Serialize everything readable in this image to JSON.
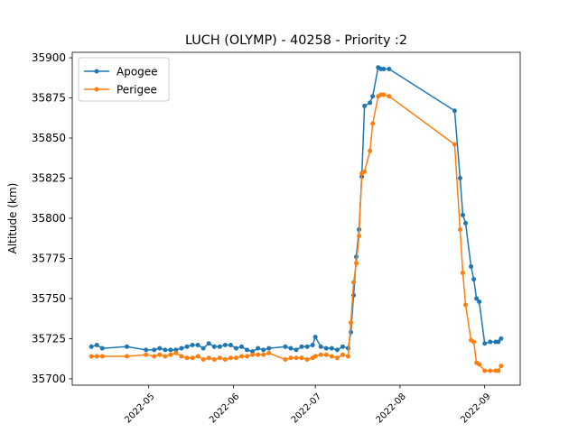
{
  "chart_data": {
    "type": "line",
    "title": "LUCH (OLYMP) - 40258 - Priority :2",
    "y_label": "Altitude (km)",
    "x": [
      "2022-04-10",
      "2022-04-12",
      "2022-04-14",
      "2022-04-23",
      "2022-04-30",
      "2022-05-03",
      "2022-05-05",
      "2022-05-07",
      "2022-05-09",
      "2022-05-11",
      "2022-05-13",
      "2022-05-15",
      "2022-05-17",
      "2022-05-19",
      "2022-05-21",
      "2022-05-23",
      "2022-05-25",
      "2022-05-27",
      "2022-05-29",
      "2022-05-31",
      "2022-06-02",
      "2022-06-04",
      "2022-06-06",
      "2022-06-08",
      "2022-06-10",
      "2022-06-12",
      "2022-06-14",
      "2022-06-20",
      "2022-06-22",
      "2022-06-24",
      "2022-06-26",
      "2022-06-28",
      "2022-06-30",
      "2022-07-01",
      "2022-07-03",
      "2022-07-05",
      "2022-07-07",
      "2022-07-09",
      "2022-07-11",
      "2022-07-13",
      "2022-07-14",
      "2022-07-15",
      "2022-07-16",
      "2022-07-17",
      "2022-07-18",
      "2022-07-19",
      "2022-07-21",
      "2022-07-22",
      "2022-07-24",
      "2022-07-25",
      "2022-07-26",
      "2022-07-28",
      "2022-08-21",
      "2022-08-23",
      "2022-08-24",
      "2022-08-25",
      "2022-08-27",
      "2022-08-28",
      "2022-08-29",
      "2022-08-30",
      "2022-09-01",
      "2022-09-03",
      "2022-09-05",
      "2022-09-06",
      "2022-09-07"
    ],
    "series": [
      {
        "name": "Apogee",
        "color": "#1f77b4",
        "values": [
          35720,
          35721,
          35719,
          35720,
          35718,
          35718,
          35719,
          35718,
          35718,
          35718,
          35719,
          35720,
          35721,
          35721,
          35719,
          35722,
          35720,
          35720,
          35721,
          35721,
          35719,
          35720,
          35718,
          35717,
          35719,
          35718,
          35719,
          35720,
          35719,
          35718,
          35720,
          35720,
          35721,
          35726,
          35720,
          35719,
          35719,
          35718,
          35720,
          35719,
          35729,
          35752,
          35776,
          35793,
          35826,
          35870,
          35872,
          35876,
          35894,
          35893,
          35893,
          35893,
          35867,
          35825,
          35802,
          35797,
          35770,
          35762,
          35750,
          35748,
          35722,
          35723,
          35723,
          35723,
          35725
        ]
      },
      {
        "name": "Perigee",
        "color": "#ff7f0e",
        "values": [
          35714,
          35714,
          35714,
          35714,
          35715,
          35714,
          35715,
          35714,
          35715,
          35716,
          35714,
          35713,
          35713,
          35714,
          35712,
          35713,
          35712,
          35713,
          35712,
          35713,
          35713,
          35714,
          35714,
          35715,
          35715,
          35715,
          35716,
          35712,
          35713,
          35713,
          35713,
          35712,
          35713,
          35714,
          35715,
          35715,
          35714,
          35713,
          35715,
          35714,
          35735,
          35760,
          35772,
          35789,
          35828,
          35829,
          35842,
          35859,
          35876,
          35877,
          35877,
          35876,
          35846,
          35793,
          35766,
          35746,
          35724,
          35723,
          35710,
          35709,
          35705,
          35705,
          35705,
          35705,
          35708
        ]
      }
    ],
    "xlim": [
      "2022-04-03",
      "2022-09-14"
    ],
    "xticks": [
      {
        "value": "2022-05-01",
        "label": "2022-05"
      },
      {
        "value": "2022-06-01",
        "label": "2022-06"
      },
      {
        "value": "2022-07-01",
        "label": "2022-07"
      },
      {
        "value": "2022-08-01",
        "label": "2022-08"
      },
      {
        "value": "2022-09-01",
        "label": "2022-09"
      }
    ],
    "ylim": [
      35696,
      35903.4
    ],
    "yticks": [
      35700,
      35725,
      35750,
      35775,
      35800,
      35825,
      35850,
      35875,
      35900
    ],
    "legend": "upper left"
  }
}
